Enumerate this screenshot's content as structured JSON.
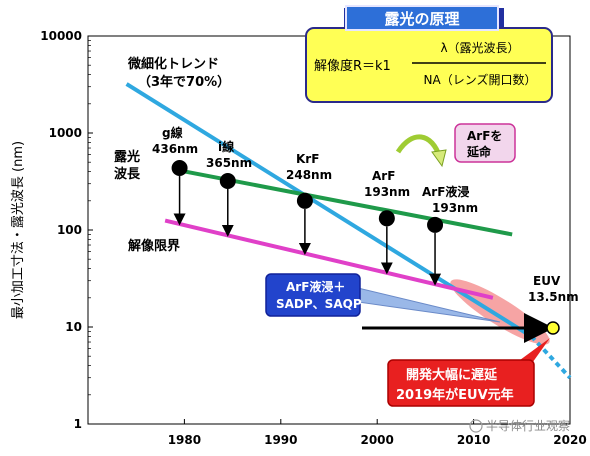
{
  "chart_data": {
    "type": "line",
    "yscale": "log",
    "xlim": [
      1970,
      2020
    ],
    "ylim": [
      1,
      10000
    ],
    "ylabel": "最小加工寸法・露光波長 (nm)",
    "x_ticks": [
      1980,
      1990,
      2000,
      2010,
      2020
    ],
    "y_ticks": [
      {
        "value": 1,
        "label": "1"
      },
      {
        "value": 10,
        "label": "10"
      },
      {
        "value": 100,
        "label": "100"
      },
      {
        "value": 1000,
        "label": "1000"
      },
      {
        "value": 10000,
        "label": "10000"
      }
    ],
    "title_box": {
      "title": "露光の原理",
      "formula_left": "解像度R＝k1",
      "numerator": "λ（露光波長）",
      "denominator": "NA（レンズ開口数）"
    },
    "series": [
      {
        "key": "trend",
        "color": "#2fa8e0",
        "points": [
          [
            1974,
            3200
          ],
          [
            2016,
            8
          ]
        ]
      },
      {
        "key": "trend_ext",
        "color": "#2fa8e0",
        "dashed": true,
        "points": [
          [
            2016,
            8
          ],
          [
            2020,
            3
          ]
        ]
      },
      {
        "key": "wavelength",
        "color": "#1f9a4a",
        "points": [
          [
            1979,
            420
          ],
          [
            2014,
            90
          ]
        ]
      },
      {
        "key": "resolution",
        "color": "#e040c8",
        "points": [
          [
            1978,
            125
          ],
          [
            2012,
            20
          ]
        ]
      }
    ],
    "wavelength_points": [
      {
        "label": "g線",
        "sub": "436nm",
        "x": 1979.5,
        "y": 436
      },
      {
        "label": "i線",
        "sub": "365nm",
        "x": 1984.5,
        "y": 320
      },
      {
        "label": "KrF",
        "sub": "248nm",
        "x": 1992.5,
        "y": 200
      },
      {
        "label": "ArF",
        "sub": "193nm",
        "x": 2001,
        "y": 132
      },
      {
        "label": "ArF液浸",
        "sub": "193nm",
        "x": 2006,
        "y": 113
      }
    ],
    "annotations": {
      "trend_label": [
        "微細化トレンド",
        "（3年で70%）"
      ],
      "wavelength_label": [
        "露光",
        "波長"
      ],
      "resolution_label": "解像限界",
      "arf_extend": [
        "ArFを",
        "延命"
      ],
      "arf_immersion_box": [
        "ArF液浸＋",
        "SADP、SAQP"
      ],
      "euv_label": [
        "EUV",
        "13.5nm"
      ],
      "delay_box": [
        "開発大幅に遅延",
        "2019年がEUV元年"
      ],
      "watermark": "半导体行业观察"
    },
    "euv_point": {
      "x": 2019,
      "y": 10
    }
  }
}
